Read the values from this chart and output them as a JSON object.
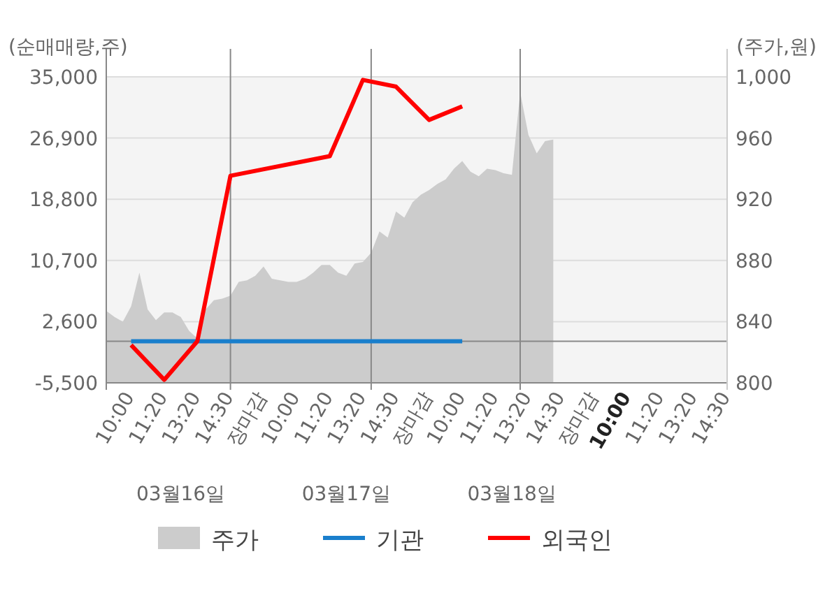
{
  "chart_data": {
    "type": "line",
    "ylabel": "(순매매량,주)",
    "y2label": "(주가,원)",
    "categories": [
      null,
      null,
      null,
      "10:00",
      null,
      null,
      null,
      "11:20",
      null,
      null,
      null,
      "13:20",
      null,
      null,
      null,
      "14:30",
      null,
      null,
      null,
      "장마감",
      null,
      null,
      null,
      "10:00",
      null,
      null,
      null,
      "11:20",
      null,
      null,
      null,
      "13:20",
      null,
      null,
      null,
      "14:30",
      null,
      null,
      null,
      "장마감",
      null,
      null,
      null,
      "10:00",
      null,
      null,
      null,
      "11:20",
      null,
      null,
      null,
      "13:20",
      null,
      null,
      null,
      "14:30",
      null,
      null,
      null,
      "장마감",
      null,
      null,
      null,
      "**10:00**",
      null,
      null,
      null,
      "11:20",
      null,
      null,
      null,
      "13:20",
      null,
      null,
      null,
      "14:30"
    ],
    "ylim": [
      -5500,
      35000
    ],
    "yticks": [
      {
        "value": -5500,
        "label": "-5,500"
      },
      {
        "value": 2600,
        "label": "2,600"
      },
      {
        "value": 10700,
        "label": "10,700"
      },
      {
        "value": 18800,
        "label": "18,800"
      },
      {
        "value": 26900,
        "label": "26,900"
      },
      {
        "value": 35000,
        "label": "35,000"
      }
    ],
    "y2lim": [
      800,
      1000
    ],
    "y2ticks": [
      800,
      840,
      880,
      920,
      960,
      {
        "value": 1000,
        "label": "1,000"
      }
    ],
    "grid": "y",
    "legend": "bottom",
    "line_style": "solid",
    "marker": "none",
    "ref_lines": [
      {
        "axis": "y",
        "value": 0,
        "color": "#888888"
      }
    ],
    "annotations": [
      "03월16일",
      "03월17일",
      "03월18일"
    ],
    "series": [
      {
        "name": "주가",
        "type": "area",
        "axis": "y2",
        "color": "#cccccc",
        "values": [
          847,
          843,
          840,
          850,
          872,
          848,
          841,
          846,
          846,
          843,
          834,
          829,
          848,
          854,
          855,
          857,
          866,
          867,
          870,
          876,
          868,
          867,
          866,
          866,
          868,
          872,
          877,
          877,
          872,
          870,
          878,
          879,
          885,
          899,
          895,
          912,
          908,
          918,
          923,
          926,
          930,
          933,
          940,
          945,
          938,
          935,
          940,
          939,
          937,
          936,
          990,
          962,
          950,
          958,
          959,
          null,
          null,
          null,
          null,
          null,
          null,
          null,
          null,
          null,
          null,
          null,
          null,
          null,
          null,
          null,
          null,
          null,
          null,
          null,
          null,
          null
        ]
      },
      {
        "name": "기관",
        "color": "#1a7fcc",
        "values": [
          null,
          null,
          null,
          0,
          null,
          null,
          null,
          0,
          null,
          null,
          null,
          0,
          null,
          null,
          null,
          0,
          null,
          null,
          null,
          null,
          null,
          null,
          null,
          null,
          null,
          null,
          null,
          0,
          null,
          null,
          null,
          0,
          null,
          null,
          null,
          0,
          null,
          null,
          null,
          0,
          null,
          null,
          null,
          0,
          null,
          null,
          null,
          null,
          null,
          null,
          null,
          null,
          null,
          null,
          null,
          null,
          null,
          null,
          null,
          null,
          null,
          null,
          null,
          null,
          null,
          null,
          null,
          null,
          null,
          null,
          null,
          null,
          null,
          null,
          null,
          null
        ]
      },
      {
        "name": "외국인",
        "color": "#ff0000",
        "values": [
          null,
          null,
          null,
          -500,
          null,
          null,
          null,
          -5100,
          null,
          null,
          null,
          0,
          null,
          null,
          null,
          21900,
          null,
          null,
          null,
          null,
          null,
          null,
          null,
          null,
          null,
          null,
          null,
          24500,
          null,
          null,
          null,
          34600,
          null,
          null,
          null,
          33700,
          null,
          null,
          null,
          29300,
          null,
          null,
          null,
          31100,
          null,
          null,
          null,
          null,
          null,
          null,
          null,
          null,
          null,
          null,
          null,
          null,
          null,
          null,
          null,
          null,
          null,
          null,
          null,
          null,
          null,
          null,
          null,
          null,
          null,
          null,
          null,
          null,
          null,
          null,
          null,
          null
        ]
      }
    ]
  }
}
